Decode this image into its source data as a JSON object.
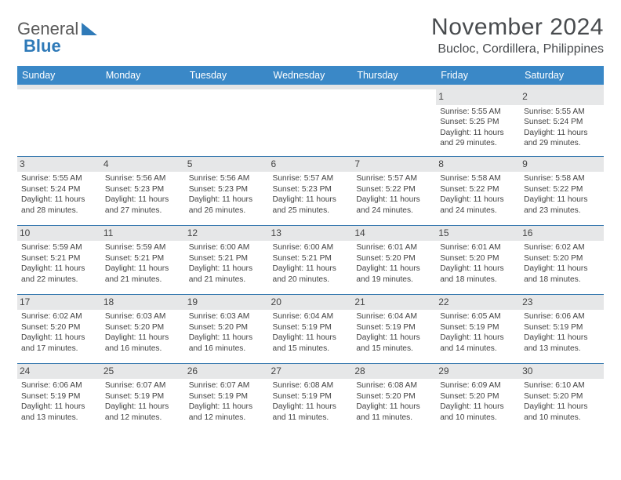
{
  "logo": {
    "text1": "General",
    "text2": "Blue"
  },
  "title": "November 2024",
  "location": "Bucloc, Cordillera, Philippines",
  "colors": {
    "header_bg": "#3a88c7",
    "header_fg": "#ffffff",
    "day_strip": "#e6e7e8",
    "rule": "#3b7bb0",
    "logo_accent": "#2f7ab8"
  },
  "day_labels": [
    "Sunday",
    "Monday",
    "Tuesday",
    "Wednesday",
    "Thursday",
    "Friday",
    "Saturday"
  ],
  "weeks": [
    [
      {
        "n": "",
        "sr": "",
        "ss": "",
        "dl": ""
      },
      {
        "n": "",
        "sr": "",
        "ss": "",
        "dl": ""
      },
      {
        "n": "",
        "sr": "",
        "ss": "",
        "dl": ""
      },
      {
        "n": "",
        "sr": "",
        "ss": "",
        "dl": ""
      },
      {
        "n": "",
        "sr": "",
        "ss": "",
        "dl": ""
      },
      {
        "n": "1",
        "sr": "Sunrise: 5:55 AM",
        "ss": "Sunset: 5:25 PM",
        "dl": "Daylight: 11 hours and 29 minutes."
      },
      {
        "n": "2",
        "sr": "Sunrise: 5:55 AM",
        "ss": "Sunset: 5:24 PM",
        "dl": "Daylight: 11 hours and 29 minutes."
      }
    ],
    [
      {
        "n": "3",
        "sr": "Sunrise: 5:55 AM",
        "ss": "Sunset: 5:24 PM",
        "dl": "Daylight: 11 hours and 28 minutes."
      },
      {
        "n": "4",
        "sr": "Sunrise: 5:56 AM",
        "ss": "Sunset: 5:23 PM",
        "dl": "Daylight: 11 hours and 27 minutes."
      },
      {
        "n": "5",
        "sr": "Sunrise: 5:56 AM",
        "ss": "Sunset: 5:23 PM",
        "dl": "Daylight: 11 hours and 26 minutes."
      },
      {
        "n": "6",
        "sr": "Sunrise: 5:57 AM",
        "ss": "Sunset: 5:23 PM",
        "dl": "Daylight: 11 hours and 25 minutes."
      },
      {
        "n": "7",
        "sr": "Sunrise: 5:57 AM",
        "ss": "Sunset: 5:22 PM",
        "dl": "Daylight: 11 hours and 24 minutes."
      },
      {
        "n": "8",
        "sr": "Sunrise: 5:58 AM",
        "ss": "Sunset: 5:22 PM",
        "dl": "Daylight: 11 hours and 24 minutes."
      },
      {
        "n": "9",
        "sr": "Sunrise: 5:58 AM",
        "ss": "Sunset: 5:22 PM",
        "dl": "Daylight: 11 hours and 23 minutes."
      }
    ],
    [
      {
        "n": "10",
        "sr": "Sunrise: 5:59 AM",
        "ss": "Sunset: 5:21 PM",
        "dl": "Daylight: 11 hours and 22 minutes."
      },
      {
        "n": "11",
        "sr": "Sunrise: 5:59 AM",
        "ss": "Sunset: 5:21 PM",
        "dl": "Daylight: 11 hours and 21 minutes."
      },
      {
        "n": "12",
        "sr": "Sunrise: 6:00 AM",
        "ss": "Sunset: 5:21 PM",
        "dl": "Daylight: 11 hours and 21 minutes."
      },
      {
        "n": "13",
        "sr": "Sunrise: 6:00 AM",
        "ss": "Sunset: 5:21 PM",
        "dl": "Daylight: 11 hours and 20 minutes."
      },
      {
        "n": "14",
        "sr": "Sunrise: 6:01 AM",
        "ss": "Sunset: 5:20 PM",
        "dl": "Daylight: 11 hours and 19 minutes."
      },
      {
        "n": "15",
        "sr": "Sunrise: 6:01 AM",
        "ss": "Sunset: 5:20 PM",
        "dl": "Daylight: 11 hours and 18 minutes."
      },
      {
        "n": "16",
        "sr": "Sunrise: 6:02 AM",
        "ss": "Sunset: 5:20 PM",
        "dl": "Daylight: 11 hours and 18 minutes."
      }
    ],
    [
      {
        "n": "17",
        "sr": "Sunrise: 6:02 AM",
        "ss": "Sunset: 5:20 PM",
        "dl": "Daylight: 11 hours and 17 minutes."
      },
      {
        "n": "18",
        "sr": "Sunrise: 6:03 AM",
        "ss": "Sunset: 5:20 PM",
        "dl": "Daylight: 11 hours and 16 minutes."
      },
      {
        "n": "19",
        "sr": "Sunrise: 6:03 AM",
        "ss": "Sunset: 5:20 PM",
        "dl": "Daylight: 11 hours and 16 minutes."
      },
      {
        "n": "20",
        "sr": "Sunrise: 6:04 AM",
        "ss": "Sunset: 5:19 PM",
        "dl": "Daylight: 11 hours and 15 minutes."
      },
      {
        "n": "21",
        "sr": "Sunrise: 6:04 AM",
        "ss": "Sunset: 5:19 PM",
        "dl": "Daylight: 11 hours and 15 minutes."
      },
      {
        "n": "22",
        "sr": "Sunrise: 6:05 AM",
        "ss": "Sunset: 5:19 PM",
        "dl": "Daylight: 11 hours and 14 minutes."
      },
      {
        "n": "23",
        "sr": "Sunrise: 6:06 AM",
        "ss": "Sunset: 5:19 PM",
        "dl": "Daylight: 11 hours and 13 minutes."
      }
    ],
    [
      {
        "n": "24",
        "sr": "Sunrise: 6:06 AM",
        "ss": "Sunset: 5:19 PM",
        "dl": "Daylight: 11 hours and 13 minutes."
      },
      {
        "n": "25",
        "sr": "Sunrise: 6:07 AM",
        "ss": "Sunset: 5:19 PM",
        "dl": "Daylight: 11 hours and 12 minutes."
      },
      {
        "n": "26",
        "sr": "Sunrise: 6:07 AM",
        "ss": "Sunset: 5:19 PM",
        "dl": "Daylight: 11 hours and 12 minutes."
      },
      {
        "n": "27",
        "sr": "Sunrise: 6:08 AM",
        "ss": "Sunset: 5:19 PM",
        "dl": "Daylight: 11 hours and 11 minutes."
      },
      {
        "n": "28",
        "sr": "Sunrise: 6:08 AM",
        "ss": "Sunset: 5:20 PM",
        "dl": "Daylight: 11 hours and 11 minutes."
      },
      {
        "n": "29",
        "sr": "Sunrise: 6:09 AM",
        "ss": "Sunset: 5:20 PM",
        "dl": "Daylight: 11 hours and 10 minutes."
      },
      {
        "n": "30",
        "sr": "Sunrise: 6:10 AM",
        "ss": "Sunset: 5:20 PM",
        "dl": "Daylight: 11 hours and 10 minutes."
      }
    ]
  ]
}
